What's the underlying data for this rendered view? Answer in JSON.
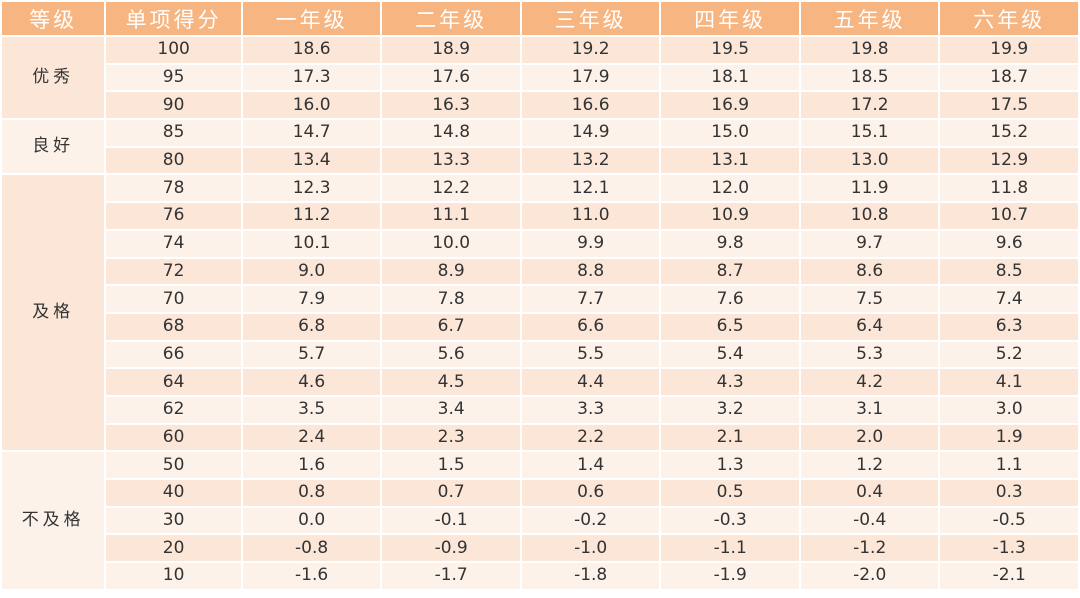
{
  "headers": [
    "等级",
    "单项得分",
    "一年级",
    "二年级",
    "三年级",
    "四年级",
    "五年级",
    "六年级"
  ],
  "groups": [
    {
      "grade": "优秀",
      "rows": [
        {
          "score": "100",
          "values": [
            "18.6",
            "18.9",
            "19.2",
            "19.5",
            "19.8",
            "19.9"
          ]
        },
        {
          "score": "95",
          "values": [
            "17.3",
            "17.6",
            "17.9",
            "18.1",
            "18.5",
            "18.7"
          ]
        },
        {
          "score": "90",
          "values": [
            "16.0",
            "16.3",
            "16.6",
            "16.9",
            "17.2",
            "17.5"
          ]
        }
      ]
    },
    {
      "grade": "良好",
      "rows": [
        {
          "score": "85",
          "values": [
            "14.7",
            "14.8",
            "14.9",
            "15.0",
            "15.1",
            "15.2"
          ]
        },
        {
          "score": "80",
          "values": [
            "13.4",
            "13.3",
            "13.2",
            "13.1",
            "13.0",
            "12.9"
          ]
        }
      ]
    },
    {
      "grade": "及格",
      "rows": [
        {
          "score": "78",
          "values": [
            "12.3",
            "12.2",
            "12.1",
            "12.0",
            "11.9",
            "11.8"
          ]
        },
        {
          "score": "76",
          "values": [
            "11.2",
            "11.1",
            "11.0",
            "10.9",
            "10.8",
            "10.7"
          ]
        },
        {
          "score": "74",
          "values": [
            "10.1",
            "10.0",
            "9.9",
            "9.8",
            "9.7",
            "9.6"
          ]
        },
        {
          "score": "72",
          "values": [
            "9.0",
            "8.9",
            "8.8",
            "8.7",
            "8.6",
            "8.5"
          ]
        },
        {
          "score": "70",
          "values": [
            "7.9",
            "7.8",
            "7.7",
            "7.6",
            "7.5",
            "7.4"
          ]
        },
        {
          "score": "68",
          "values": [
            "6.8",
            "6.7",
            "6.6",
            "6.5",
            "6.4",
            "6.3"
          ]
        },
        {
          "score": "66",
          "values": [
            "5.7",
            "5.6",
            "5.5",
            "5.4",
            "5.3",
            "5.2"
          ]
        },
        {
          "score": "64",
          "values": [
            "4.6",
            "4.5",
            "4.4",
            "4.3",
            "4.2",
            "4.1"
          ]
        },
        {
          "score": "62",
          "values": [
            "3.5",
            "3.4",
            "3.3",
            "3.2",
            "3.1",
            "3.0"
          ]
        },
        {
          "score": "60",
          "values": [
            "2.4",
            "2.3",
            "2.2",
            "2.1",
            "2.0",
            "1.9"
          ]
        }
      ]
    },
    {
      "grade": "不及格",
      "rows": [
        {
          "score": "50",
          "values": [
            "1.6",
            "1.5",
            "1.4",
            "1.3",
            "1.2",
            "1.1"
          ]
        },
        {
          "score": "40",
          "values": [
            "0.8",
            "0.7",
            "0.6",
            "0.5",
            "0.4",
            "0.3"
          ]
        },
        {
          "score": "30",
          "values": [
            "0.0",
            "-0.1",
            "-0.2",
            "-0.3",
            "-0.4",
            "-0.5"
          ]
        },
        {
          "score": "20",
          "values": [
            "-0.8",
            "-0.9",
            "-1.0",
            "-1.1",
            "-1.2",
            "-1.3"
          ]
        },
        {
          "score": "10",
          "values": [
            "-1.6",
            "-1.7",
            "-1.8",
            "-1.9",
            "-2.0",
            "-2.1"
          ]
        }
      ]
    }
  ]
}
